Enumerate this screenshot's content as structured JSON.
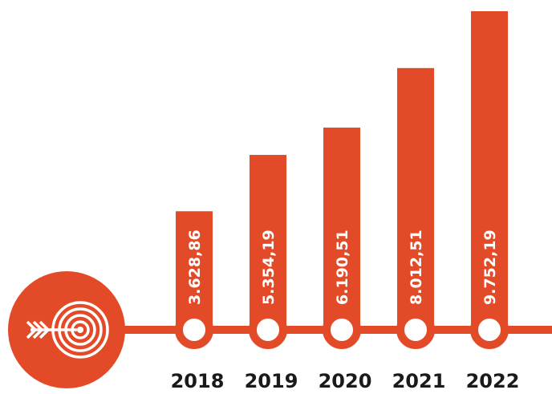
{
  "chart_data": {
    "type": "bar",
    "categories": [
      "2018",
      "2019",
      "2020",
      "2021",
      "2022"
    ],
    "values": [
      3628.86,
      5354.19,
      6190.51,
      8012.51,
      9752.19
    ],
    "value_labels": [
      "3.628,86",
      "5.354,19",
      "6.190,51",
      "8.012,51",
      "9.752,19"
    ],
    "title": "",
    "xlabel": "",
    "ylabel": "",
    "ylim": [
      0,
      9752.19
    ],
    "grid": false,
    "legend": "none"
  },
  "colors": {
    "accent": "#E34A27",
    "background": "#ffffff",
    "year_text": "#1a1a1a",
    "value_text": "#ffffff"
  },
  "icons": {
    "badge": "target-arrow-icon"
  }
}
